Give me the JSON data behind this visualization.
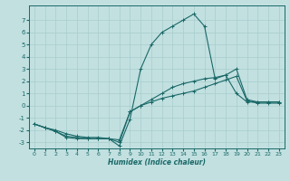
{
  "xlabel": "Humidex (Indice chaleur)",
  "background_color": "#c2e0e0",
  "grid_color": "#a8cccc",
  "line_color": "#1a6868",
  "xlim": [
    -0.5,
    23.5
  ],
  "ylim": [
    -3.5,
    8.2
  ],
  "yticks": [
    -3,
    -2,
    -1,
    0,
    1,
    2,
    3,
    4,
    5,
    6,
    7
  ],
  "xticks": [
    0,
    1,
    2,
    3,
    4,
    5,
    6,
    7,
    8,
    9,
    10,
    11,
    12,
    13,
    14,
    15,
    16,
    17,
    18,
    19,
    20,
    21,
    22,
    23
  ],
  "series": [
    {
      "x": [
        0,
        1,
        2,
        3,
        4,
        5,
        6,
        7,
        8,
        9,
        10,
        11,
        12,
        13,
        14,
        15,
        16,
        17,
        18,
        19,
        20,
        21,
        22,
        23
      ],
      "y": [
        -1.5,
        -1.8,
        -2.1,
        -2.6,
        -2.7,
        -2.7,
        -2.7,
        -2.7,
        -3.3,
        -1.1,
        3.0,
        5.0,
        6.0,
        6.5,
        7.0,
        7.5,
        6.5,
        2.2,
        2.5,
        1.0,
        0.3,
        0.3,
        0.3,
        0.3
      ]
    },
    {
      "x": [
        0,
        1,
        2,
        3,
        4,
        5,
        6,
        7,
        8,
        9,
        10,
        11,
        12,
        13,
        14,
        15,
        16,
        17,
        18,
        19,
        20,
        21,
        22,
        23
      ],
      "y": [
        -1.5,
        -1.8,
        -2.1,
        -2.5,
        -2.6,
        -2.7,
        -2.7,
        -2.7,
        -3.0,
        -0.5,
        0.0,
        0.5,
        1.0,
        1.5,
        1.8,
        2.0,
        2.2,
        2.3,
        2.5,
        3.0,
        0.5,
        0.3,
        0.3,
        0.3
      ]
    },
    {
      "x": [
        0,
        1,
        2,
        3,
        4,
        5,
        6,
        7,
        8,
        9,
        10,
        11,
        12,
        13,
        14,
        15,
        16,
        17,
        18,
        19,
        20,
        21,
        22,
        23
      ],
      "y": [
        -1.5,
        -1.8,
        -2.0,
        -2.3,
        -2.5,
        -2.6,
        -2.6,
        -2.7,
        -2.8,
        -0.5,
        0.0,
        0.3,
        0.6,
        0.8,
        1.0,
        1.2,
        1.5,
        1.8,
        2.1,
        2.4,
        0.4,
        0.2,
        0.2,
        0.2
      ]
    }
  ]
}
